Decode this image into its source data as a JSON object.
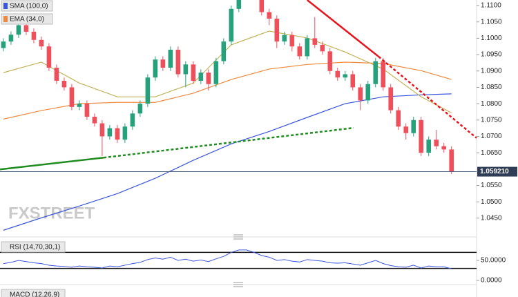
{
  "chart_data": {
    "type": "candlestick",
    "watermark": "FXSTREET",
    "legend": [
      "SMA (100,0)",
      "EMA (34,0)"
    ],
    "xlim": [
      -0.45,
      62.3
    ],
    "ylim": [
      1.0399,
      1.1117
    ],
    "yticks": [
      {
        "value": 1.11,
        "label": "1.1100"
      },
      {
        "value": 1.105,
        "label": "1.1050"
      },
      {
        "value": 1.1,
        "label": "1.1000"
      },
      {
        "value": 1.095,
        "label": "1.0950"
      },
      {
        "value": 1.09,
        "label": "1.0900"
      },
      {
        "value": 1.085,
        "label": "1.0850"
      },
      {
        "value": 1.08,
        "label": "1.0800"
      },
      {
        "value": 1.075,
        "label": "1.0750"
      },
      {
        "value": 1.07,
        "label": "1.0700"
      },
      {
        "value": 1.065,
        "label": "1.0650"
      },
      {
        "value": 1.055,
        "label": "1.0550"
      },
      {
        "value": 1.05,
        "label": "1.0500"
      },
      {
        "value": 1.045,
        "label": "1.0450"
      }
    ],
    "last_price": {
      "value": 1.05921,
      "label": "1.059210"
    },
    "up_color": "#26a17b",
    "down_color": "#ef4f5a",
    "open": [
      1.097,
      1.099,
      1.1011,
      1.104,
      1.102,
      1.0995,
      1.0975,
      1.091,
      1.087,
      1.085,
      1.079,
      1.08,
      1.076,
      1.074,
      1.07,
      1.0725,
      1.069,
      1.073,
      1.077,
      1.08,
      1.088,
      1.0935,
      1.091,
      1.0965,
      1.089,
      1.092,
      1.087,
      1.0895,
      1.086,
      1.093,
      1.099,
      1.109,
      1.115,
      1.117,
      1.113,
      1.108,
      1.106,
      1.099,
      1.101,
      1.0975,
      1.0945,
      1.1,
      1.098,
      1.096,
      1.09,
      1.088,
      1.089,
      1.085,
      1.081,
      1.086,
      1.093,
      1.085,
      1.078,
      1.073,
      1.071,
      1.075,
      1.065,
      1.069,
      1.067,
      1.066
    ],
    "high": [
      1.1,
      1.1021,
      1.105,
      1.105,
      1.103,
      1.1005,
      1.0985,
      1.092,
      1.088,
      1.086,
      1.081,
      1.081,
      1.077,
      1.075,
      1.0735,
      1.0735,
      1.074,
      1.078,
      1.081,
      1.089,
      1.0945,
      1.0945,
      1.0975,
      1.0975,
      1.093,
      1.093,
      1.0905,
      1.0905,
      1.094,
      1.1,
      1.11,
      1.116,
      1.118,
      1.118,
      1.114,
      1.109,
      1.107,
      1.102,
      1.102,
      1.0985,
      1.101,
      1.1065,
      1.099,
      1.097,
      1.091,
      1.09,
      1.09,
      1.086,
      1.087,
      1.094,
      1.094,
      1.086,
      1.079,
      1.074,
      1.076,
      1.076,
      1.07,
      1.072,
      1.068,
      1.067
    ],
    "low": [
      1.096,
      1.098,
      1.1001,
      1.101,
      1.0985,
      1.0965,
      1.09,
      1.086,
      1.084,
      1.078,
      1.078,
      1.075,
      1.073,
      1.064,
      1.069,
      1.068,
      1.068,
      1.072,
      1.076,
      1.079,
      1.087,
      1.09,
      1.09,
      1.088,
      1.085,
      1.086,
      1.086,
      1.084,
      1.085,
      1.092,
      1.098,
      1.108,
      1.114,
      1.112,
      1.107,
      1.104,
      1.097,
      1.098,
      1.096,
      1.0935,
      1.0935,
      1.097,
      1.095,
      1.089,
      1.087,
      1.087,
      1.084,
      1.078,
      1.08,
      1.085,
      1.084,
      1.077,
      1.072,
      1.069,
      1.07,
      1.064,
      1.064,
      1.066,
      1.065,
      1.0585
    ],
    "close": [
      1.099,
      1.1011,
      1.104,
      1.102,
      1.0995,
      1.0975,
      1.091,
      1.087,
      1.085,
      1.079,
      1.08,
      1.076,
      1.074,
      1.07,
      1.0725,
      1.069,
      1.073,
      1.077,
      1.08,
      1.088,
      1.0935,
      1.091,
      1.0965,
      1.089,
      1.092,
      1.087,
      1.0895,
      1.086,
      1.093,
      1.099,
      1.109,
      1.115,
      1.117,
      1.113,
      1.108,
      1.106,
      1.099,
      1.101,
      1.0975,
      1.0945,
      1.1,
      1.098,
      1.096,
      1.09,
      1.088,
      1.089,
      1.085,
      1.081,
      1.086,
      1.093,
      1.085,
      1.078,
      1.073,
      1.071,
      1.075,
      1.065,
      1.069,
      1.067,
      1.066,
      1.0592
    ],
    "lines": [
      {
        "color": "#3a55e0",
        "x": [
          0,
          5,
          10,
          15,
          20,
          25,
          30,
          35,
          40,
          45,
          50,
          55,
          59
        ],
        "values": [
          1.0413,
          1.0451,
          1.0487,
          1.0525,
          1.0572,
          1.0627,
          1.0677,
          1.0715,
          1.0758,
          1.08,
          1.0821,
          1.0827,
          1.083
        ]
      },
      {
        "color": "#f0883e",
        "x": [
          0,
          5,
          10,
          15,
          20,
          25,
          30,
          35,
          40,
          45,
          50,
          55,
          59
        ],
        "values": [
          1.0753,
          1.0779,
          1.08,
          1.0804,
          1.0804,
          1.0832,
          1.0874,
          1.0906,
          1.092,
          1.0927,
          1.0923,
          1.0901,
          1.0874
        ]
      },
      {
        "color": "#c2b256",
        "x": [
          0,
          5,
          10,
          15,
          20,
          25,
          30,
          35,
          40,
          45,
          50,
          55,
          59
        ],
        "values": [
          1.0895,
          1.0927,
          1.0863,
          1.0821,
          1.0821,
          1.0863,
          1.098,
          1.1022,
          1.1001,
          1.0958,
          1.0906,
          1.0821,
          1.0772
        ]
      }
    ],
    "trendlines": [
      {
        "color": "#e8141c",
        "style": "solid",
        "x": [
          40,
          49.4
        ],
        "values": [
          1.1117,
          1.0944
        ]
      },
      {
        "color": "#e8141c",
        "style": "dotted",
        "x": [
          49.4,
          62.3
        ],
        "values": [
          1.0944,
          1.0695
        ]
      },
      {
        "color": "#1e8c1e",
        "style": "solid",
        "x": [
          -0.45,
          13.2
        ],
        "values": [
          1.0599,
          1.0635
        ]
      },
      {
        "color": "#1e8c1e",
        "style": "dotted",
        "x": [
          13.2,
          46.1
        ],
        "values": [
          1.0635,
          1.0726
        ]
      }
    ],
    "rsi": {
      "label": "RSI (14,70,30,1)",
      "color": "#3a55e0",
      "ylim": [
        -3.45,
        96.5
      ],
      "yticks": [
        {
          "value": 50,
          "label": "50.0000"
        },
        {
          "value": 0,
          "label": "0.0000"
        }
      ],
      "levels": [
        70,
        30
      ],
      "values": [
        42,
        45,
        50,
        47,
        44,
        42,
        38,
        36,
        35,
        33,
        36,
        34,
        33,
        31,
        36,
        34,
        38,
        42,
        45,
        52,
        56,
        53,
        58,
        50,
        53,
        48,
        51,
        47,
        54,
        60,
        70,
        76,
        76,
        70,
        62,
        58,
        50,
        52,
        48,
        46,
        52,
        50,
        48,
        44,
        43,
        44,
        41,
        38,
        44,
        50,
        42,
        37,
        34,
        33,
        38,
        31,
        36,
        34,
        34,
        29
      ]
    },
    "macd": {
      "label": "MACD (12,26,9)"
    }
  }
}
